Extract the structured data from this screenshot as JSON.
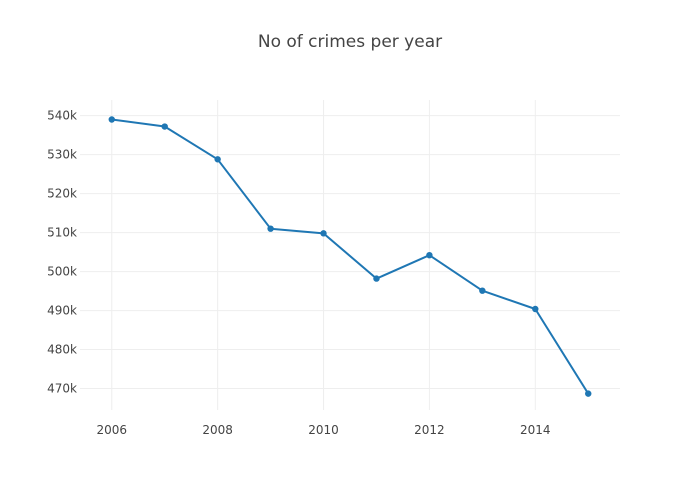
{
  "chart_data": {
    "type": "line",
    "title": "No of crimes per year",
    "xlabel": "",
    "ylabel": "",
    "x": [
      2006,
      2007,
      2008,
      2009,
      2010,
      2011,
      2012,
      2013,
      2014,
      2015
    ],
    "series": [
      {
        "values": [
          539000,
          537200,
          528800,
          511000,
          509800,
          498200,
          504200,
          495100,
          490400,
          468700
        ],
        "color": "#1f77b4"
      }
    ],
    "xlim": [
      2005.4,
      2015.6
    ],
    "ylim": [
      464500,
      544000
    ],
    "x_ticks": [
      2006,
      2008,
      2010,
      2012,
      2014
    ],
    "x_tick_labels": [
      "2006",
      "2008",
      "2010",
      "2012",
      "2014"
    ],
    "y_ticks": [
      470000,
      480000,
      490000,
      500000,
      510000,
      520000,
      530000,
      540000
    ],
    "y_tick_labels": [
      "470k",
      "480k",
      "490k",
      "500k",
      "510k",
      "520k",
      "530k",
      "540k"
    ],
    "grid": true,
    "legend": "none"
  }
}
